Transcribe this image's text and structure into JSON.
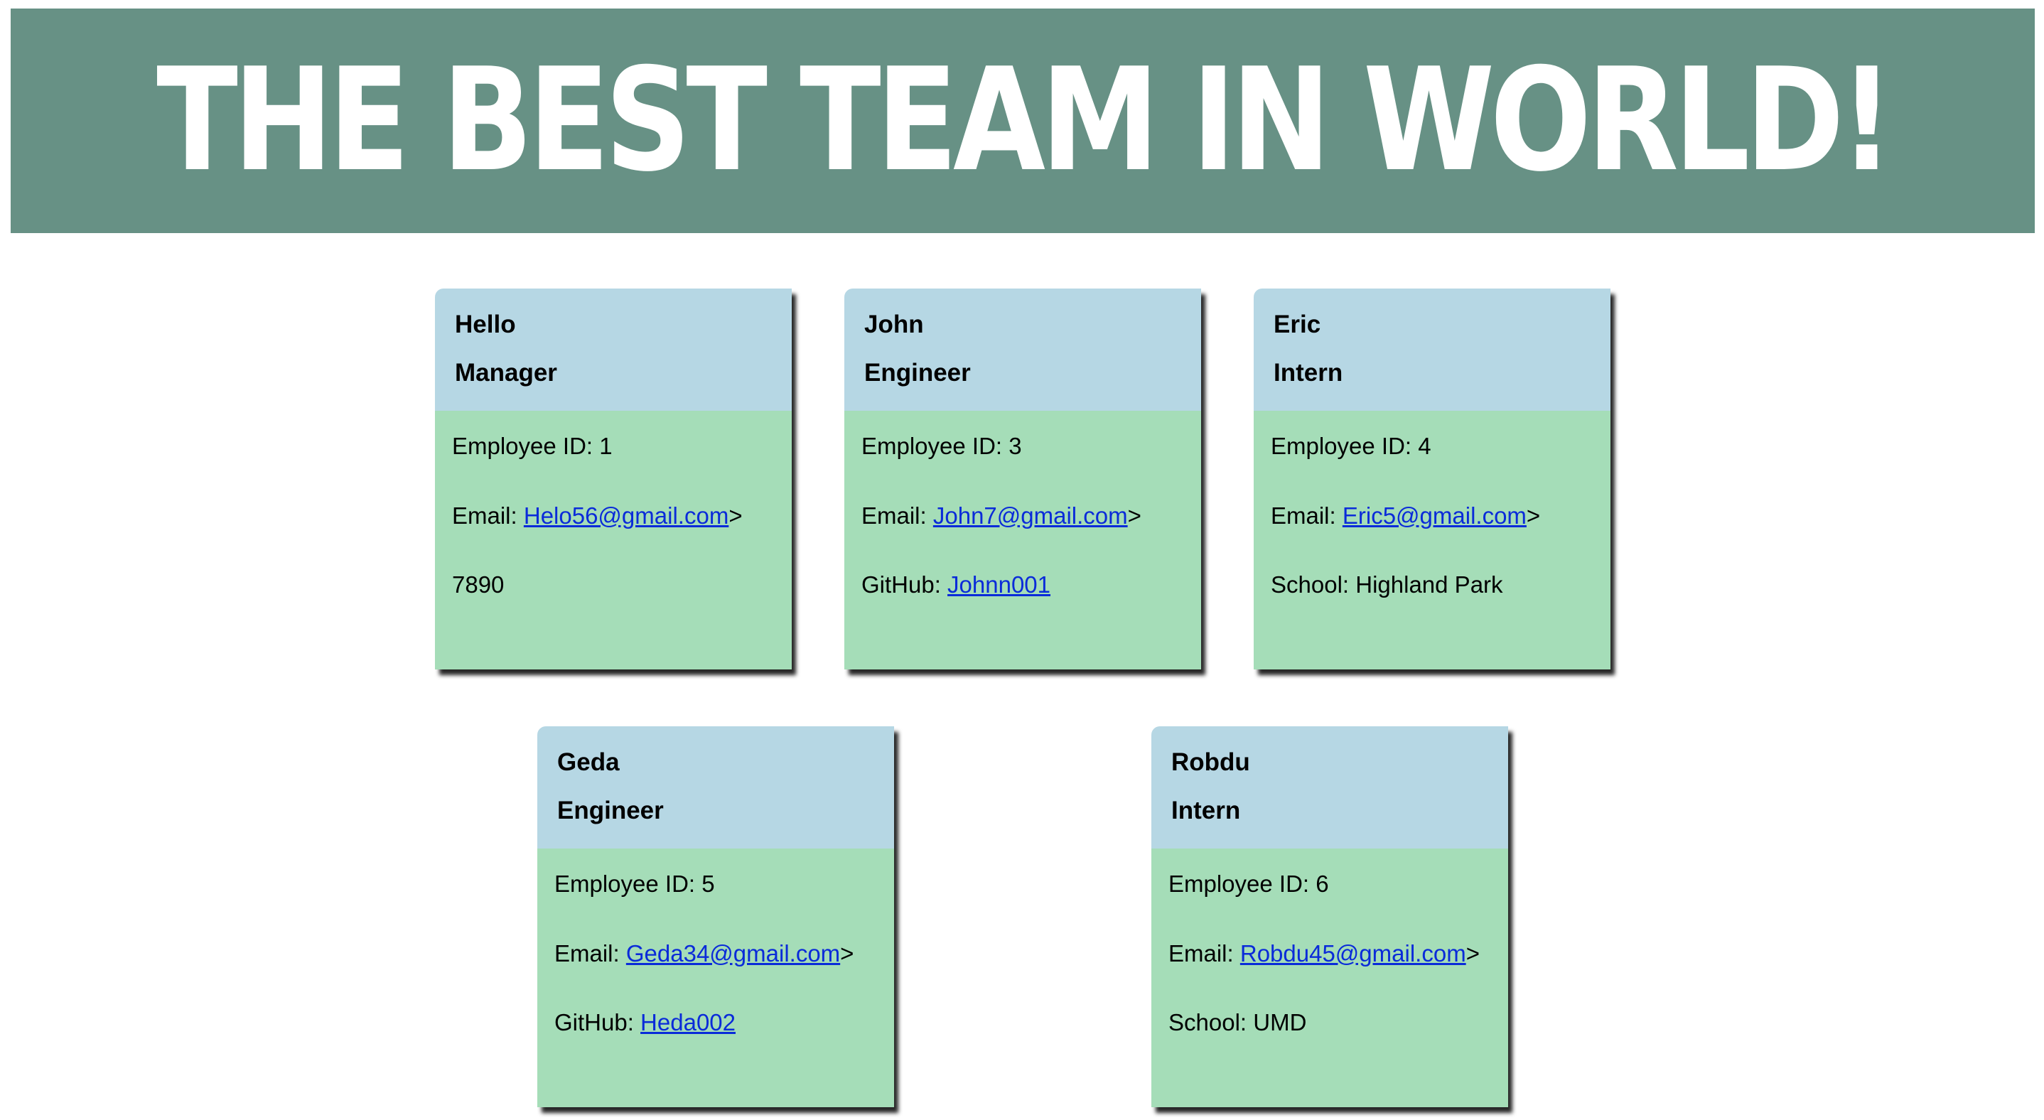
{
  "header": {
    "title": "THE BEST TEAM IN WORLD!",
    "background_color": "#679185"
  },
  "cards": [
    {
      "name": "Hello",
      "role": "Manager",
      "id_label": "Employee ID: 1",
      "email_prefix": "Email: ",
      "email": "Helo56@gmail.com",
      "email_suffix": ">",
      "extra_prefix": "",
      "extra_text": "7890",
      "extra_link": ""
    },
    {
      "name": "John",
      "role": "Engineer",
      "id_label": "Employee ID: 3",
      "email_prefix": "Email: ",
      "email": "John7@gmail.com",
      "email_suffix": ">",
      "extra_prefix": "GitHub: ",
      "extra_text": "",
      "extra_link": "Johnn001"
    },
    {
      "name": "Eric",
      "role": "Intern",
      "id_label": "Employee ID: 4",
      "email_prefix": "Email: ",
      "email": "Eric5@gmail.com",
      "email_suffix": ">",
      "extra_prefix": "School: ",
      "extra_text": "Highland Park",
      "extra_link": ""
    },
    {
      "name": "Geda",
      "role": "Engineer",
      "id_label": "Employee ID: 5",
      "email_prefix": "Email: ",
      "email": "Geda34@gmail.com",
      "email_suffix": ">",
      "extra_prefix": "GitHub: ",
      "extra_text": "",
      "extra_link": "Heda002"
    },
    {
      "name": "Robdu",
      "role": "Intern",
      "id_label": "Employee ID: 6",
      "email_prefix": "Email: ",
      "email": "Robdu45@gmail.com",
      "email_suffix": ">",
      "extra_prefix": "School: ",
      "extra_text": "UMD",
      "extra_link": ""
    }
  ],
  "colors": {
    "card_header": "#b6d7e4",
    "card_body": "#a5ddb8",
    "link": "#0a2bd9"
  }
}
